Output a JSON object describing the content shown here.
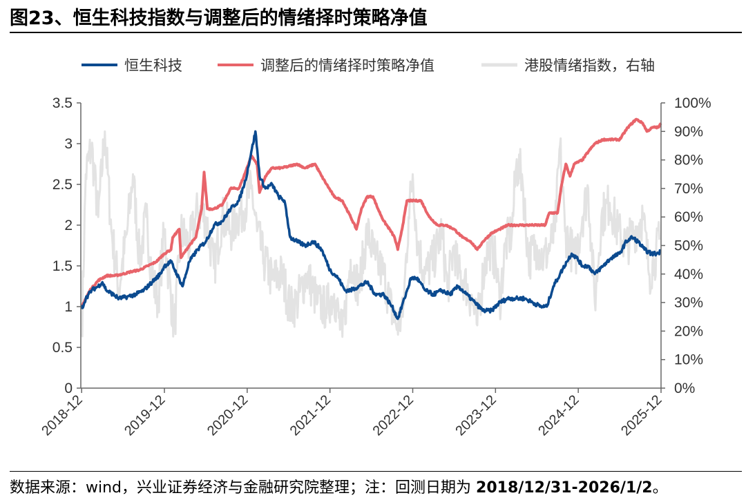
{
  "title": "图23、恒生科技指数与调整后的情绪择时策略净值",
  "source_prefix": "数据来源：wind，兴业证券经济与金融研究院整理；注：回测日期为 ",
  "source_dates": "2018/12/31-2026/1/2",
  "source_suffix": "。",
  "colors": {
    "hstech": "#0b4a8f",
    "strategy": "#e8646a",
    "sentiment": "#e3e3e3",
    "axis": "#666666"
  },
  "chart_data": {
    "type": "line",
    "legend": [
      "恒生科技",
      "调整后的情绪择时策略净值",
      "港股情绪指数，右轴"
    ],
    "legend_position": "top",
    "x_range": [
      2018.99,
      2026.0
    ],
    "x_ticks": [
      2019.0,
      2020.0,
      2021.0,
      2022.0,
      2023.0,
      2024.0,
      2025.0,
      2026.0
    ],
    "x_tick_labels": [
      "2018-12",
      "2019-12",
      "2020-12",
      "2021-12",
      "2022-12",
      "2023-12",
      "2024-12",
      "2025-12"
    ],
    "y_left": {
      "range": [
        0,
        3.5
      ],
      "ticks": [
        0,
        0.5,
        1,
        1.5,
        2,
        2.5,
        3,
        3.5
      ],
      "tick_labels": [
        "0",
        "0.5",
        "1",
        "1.5",
        "2",
        "2.5",
        "3",
        "3.5"
      ]
    },
    "y_right": {
      "range": [
        0,
        1
      ],
      "ticks": [
        0,
        0.1,
        0.2,
        0.3,
        0.4,
        0.5,
        0.6,
        0.7,
        0.8,
        0.9,
        1.0
      ],
      "tick_labels": [
        "0%",
        "10%",
        "20%",
        "30%",
        "40%",
        "50%",
        "60%",
        "70%",
        "80%",
        "90%",
        "100%"
      ]
    },
    "series": [
      {
        "name": "港股情绪指数，右轴",
        "axis": "right",
        "noise": 0.08,
        "points": [
          [
            2019.0,
            0.18
          ],
          [
            2019.05,
            0.75
          ],
          [
            2019.12,
            0.85
          ],
          [
            2019.2,
            0.6
          ],
          [
            2019.28,
            0.9
          ],
          [
            2019.36,
            0.55
          ],
          [
            2019.45,
            0.35
          ],
          [
            2019.55,
            0.55
          ],
          [
            2019.62,
            0.75
          ],
          [
            2019.7,
            0.45
          ],
          [
            2019.78,
            0.6
          ],
          [
            2019.85,
            0.4
          ],
          [
            2019.92,
            0.3
          ],
          [
            2020.0,
            0.55
          ],
          [
            2020.05,
            0.4
          ],
          [
            2020.12,
            0.2
          ],
          [
            2020.2,
            0.55
          ],
          [
            2020.3,
            0.5
          ],
          [
            2020.4,
            0.62
          ],
          [
            2020.5,
            0.6
          ],
          [
            2020.6,
            0.42
          ],
          [
            2020.7,
            0.6
          ],
          [
            2020.8,
            0.55
          ],
          [
            2020.88,
            0.6
          ],
          [
            2020.95,
            0.62
          ],
          [
            2021.05,
            0.7
          ],
          [
            2021.12,
            0.55
          ],
          [
            2021.2,
            0.45
          ],
          [
            2021.3,
            0.38
          ],
          [
            2021.42,
            0.4
          ],
          [
            2021.52,
            0.28
          ],
          [
            2021.6,
            0.3
          ],
          [
            2021.72,
            0.4
          ],
          [
            2021.85,
            0.3
          ],
          [
            2021.95,
            0.28
          ],
          [
            2022.05,
            0.33
          ],
          [
            2022.15,
            0.18
          ],
          [
            2022.25,
            0.45
          ],
          [
            2022.35,
            0.35
          ],
          [
            2022.45,
            0.55
          ],
          [
            2022.55,
            0.45
          ],
          [
            2022.65,
            0.4
          ],
          [
            2022.72,
            0.3
          ],
          [
            2022.8,
            0.22
          ],
          [
            2022.88,
            0.25
          ],
          [
            2022.95,
            0.6
          ],
          [
            2023.0,
            0.75
          ],
          [
            2023.06,
            0.5
          ],
          [
            2023.15,
            0.4
          ],
          [
            2023.25,
            0.45
          ],
          [
            2023.35,
            0.55
          ],
          [
            2023.42,
            0.35
          ],
          [
            2023.5,
            0.5
          ],
          [
            2023.55,
            0.4
          ],
          [
            2023.62,
            0.38
          ],
          [
            2023.72,
            0.3
          ],
          [
            2023.78,
            0.22
          ],
          [
            2023.85,
            0.4
          ],
          [
            2023.92,
            0.5
          ],
          [
            2024.0,
            0.45
          ],
          [
            2024.05,
            0.3
          ],
          [
            2024.12,
            0.5
          ],
          [
            2024.2,
            0.55
          ],
          [
            2024.25,
            0.78
          ],
          [
            2024.32,
            0.75
          ],
          [
            2024.4,
            0.45
          ],
          [
            2024.5,
            0.5
          ],
          [
            2024.58,
            0.45
          ],
          [
            2024.66,
            0.5
          ],
          [
            2024.72,
            0.55
          ],
          [
            2024.78,
            0.85
          ],
          [
            2024.84,
            0.55
          ],
          [
            2024.9,
            0.5
          ],
          [
            2024.96,
            0.45
          ],
          [
            2025.05,
            0.6
          ],
          [
            2025.12,
            0.7
          ],
          [
            2025.2,
            0.3
          ],
          [
            2025.28,
            0.6
          ],
          [
            2025.38,
            0.65
          ],
          [
            2025.48,
            0.55
          ],
          [
            2025.58,
            0.5
          ],
          [
            2025.68,
            0.55
          ],
          [
            2025.78,
            0.6
          ],
          [
            2025.86,
            0.4
          ],
          [
            2025.92,
            0.45
          ],
          [
            2025.98,
            0.52
          ]
        ]
      },
      {
        "name": "调整后的情绪择时策略净值",
        "axis": "left",
        "noise": 0.01,
        "points": [
          [
            2019.0,
            1.0
          ],
          [
            2019.1,
            1.2
          ],
          [
            2019.2,
            1.32
          ],
          [
            2019.3,
            1.38
          ],
          [
            2019.4,
            1.38
          ],
          [
            2019.5,
            1.4
          ],
          [
            2019.6,
            1.43
          ],
          [
            2019.7,
            1.45
          ],
          [
            2019.8,
            1.5
          ],
          [
            2019.9,
            1.55
          ],
          [
            2020.0,
            1.65
          ],
          [
            2020.08,
            1.7
          ],
          [
            2020.1,
            1.85
          ],
          [
            2020.18,
            1.95
          ],
          [
            2020.2,
            1.6
          ],
          [
            2020.3,
            1.75
          ],
          [
            2020.38,
            1.85
          ],
          [
            2020.45,
            2.2
          ],
          [
            2020.48,
            2.65
          ],
          [
            2020.52,
            2.2
          ],
          [
            2020.6,
            2.2
          ],
          [
            2020.7,
            2.25
          ],
          [
            2020.8,
            2.45
          ],
          [
            2020.9,
            2.45
          ],
          [
            2020.96,
            2.6
          ],
          [
            2021.05,
            2.85
          ],
          [
            2021.12,
            2.75
          ],
          [
            2021.15,
            2.4
          ],
          [
            2021.22,
            2.6
          ],
          [
            2021.3,
            2.7
          ],
          [
            2021.4,
            2.7
          ],
          [
            2021.5,
            2.72
          ],
          [
            2021.6,
            2.75
          ],
          [
            2021.7,
            2.7
          ],
          [
            2021.82,
            2.75
          ],
          [
            2021.9,
            2.6
          ],
          [
            2021.96,
            2.5
          ],
          [
            2022.05,
            2.35
          ],
          [
            2022.15,
            2.3
          ],
          [
            2022.25,
            2.1
          ],
          [
            2022.32,
            1.95
          ],
          [
            2022.38,
            2.2
          ],
          [
            2022.45,
            2.35
          ],
          [
            2022.52,
            2.35
          ],
          [
            2022.58,
            2.2
          ],
          [
            2022.65,
            2.05
          ],
          [
            2022.72,
            1.95
          ],
          [
            2022.78,
            1.85
          ],
          [
            2022.82,
            1.7
          ],
          [
            2022.88,
            2.0
          ],
          [
            2022.93,
            2.3
          ],
          [
            2023.0,
            2.3
          ],
          [
            2023.1,
            2.3
          ],
          [
            2023.2,
            2.1
          ],
          [
            2023.3,
            2.0
          ],
          [
            2023.4,
            2.0
          ],
          [
            2023.5,
            1.95
          ],
          [
            2023.6,
            1.85
          ],
          [
            2023.7,
            1.8
          ],
          [
            2023.78,
            1.7
          ],
          [
            2023.85,
            1.8
          ],
          [
            2023.95,
            1.9
          ],
          [
            2024.05,
            1.95
          ],
          [
            2024.15,
            2.0
          ],
          [
            2024.25,
            2.0
          ],
          [
            2024.35,
            2.0
          ],
          [
            2024.45,
            2.0
          ],
          [
            2024.55,
            2.0
          ],
          [
            2024.6,
            2.0
          ],
          [
            2024.65,
            2.15
          ],
          [
            2024.75,
            2.15
          ],
          [
            2024.8,
            2.5
          ],
          [
            2024.85,
            2.75
          ],
          [
            2024.9,
            2.6
          ],
          [
            2024.95,
            2.75
          ],
          [
            2025.05,
            2.8
          ],
          [
            2025.12,
            2.9
          ],
          [
            2025.2,
            3.0
          ],
          [
            2025.3,
            3.05
          ],
          [
            2025.4,
            3.05
          ],
          [
            2025.5,
            3.05
          ],
          [
            2025.6,
            3.2
          ],
          [
            2025.7,
            3.3
          ],
          [
            2025.78,
            3.25
          ],
          [
            2025.83,
            3.15
          ],
          [
            2025.9,
            3.2
          ],
          [
            2025.97,
            3.2
          ],
          [
            2026.0,
            3.25
          ]
        ]
      },
      {
        "name": "恒生科技",
        "axis": "left",
        "noise": 0.025,
        "points": [
          [
            2019.0,
            0.97
          ],
          [
            2019.05,
            1.1
          ],
          [
            2019.12,
            1.2
          ],
          [
            2019.2,
            1.25
          ],
          [
            2019.25,
            1.3
          ],
          [
            2019.3,
            1.2
          ],
          [
            2019.38,
            1.15
          ],
          [
            2019.45,
            1.1
          ],
          [
            2019.55,
            1.12
          ],
          [
            2019.65,
            1.15
          ],
          [
            2019.75,
            1.2
          ],
          [
            2019.85,
            1.3
          ],
          [
            2019.95,
            1.4
          ],
          [
            2020.0,
            1.5
          ],
          [
            2020.08,
            1.55
          ],
          [
            2020.15,
            1.4
          ],
          [
            2020.22,
            1.25
          ],
          [
            2020.3,
            1.55
          ],
          [
            2020.4,
            1.7
          ],
          [
            2020.5,
            1.8
          ],
          [
            2020.6,
            2.0
          ],
          [
            2020.7,
            2.05
          ],
          [
            2020.8,
            2.2
          ],
          [
            2020.9,
            2.3
          ],
          [
            2020.98,
            2.55
          ],
          [
            2021.05,
            2.9
          ],
          [
            2021.1,
            3.15
          ],
          [
            2021.15,
            2.6
          ],
          [
            2021.22,
            2.45
          ],
          [
            2021.3,
            2.5
          ],
          [
            2021.38,
            2.35
          ],
          [
            2021.45,
            2.3
          ],
          [
            2021.52,
            1.85
          ],
          [
            2021.6,
            1.8
          ],
          [
            2021.7,
            1.75
          ],
          [
            2021.8,
            1.8
          ],
          [
            2021.9,
            1.7
          ],
          [
            2022.0,
            1.45
          ],
          [
            2022.1,
            1.35
          ],
          [
            2022.18,
            1.2
          ],
          [
            2022.25,
            1.2
          ],
          [
            2022.35,
            1.25
          ],
          [
            2022.45,
            1.3
          ],
          [
            2022.55,
            1.15
          ],
          [
            2022.65,
            1.15
          ],
          [
            2022.75,
            1.0
          ],
          [
            2022.82,
            0.85
          ],
          [
            2022.9,
            1.1
          ],
          [
            2022.98,
            1.35
          ],
          [
            2023.05,
            1.35
          ],
          [
            2023.15,
            1.2
          ],
          [
            2023.25,
            1.15
          ],
          [
            2023.35,
            1.2
          ],
          [
            2023.45,
            1.15
          ],
          [
            2023.55,
            1.25
          ],
          [
            2023.65,
            1.15
          ],
          [
            2023.75,
            1.05
          ],
          [
            2023.85,
            0.95
          ],
          [
            2023.95,
            0.95
          ],
          [
            2024.05,
            1.05
          ],
          [
            2024.15,
            1.1
          ],
          [
            2024.25,
            1.1
          ],
          [
            2024.35,
            1.1
          ],
          [
            2024.45,
            1.05
          ],
          [
            2024.55,
            1.0
          ],
          [
            2024.62,
            1.0
          ],
          [
            2024.7,
            1.25
          ],
          [
            2024.78,
            1.4
          ],
          [
            2024.86,
            1.55
          ],
          [
            2024.92,
            1.65
          ],
          [
            2024.98,
            1.6
          ],
          [
            2025.05,
            1.5
          ],
          [
            2025.12,
            1.5
          ],
          [
            2025.2,
            1.4
          ],
          [
            2025.3,
            1.5
          ],
          [
            2025.4,
            1.6
          ],
          [
            2025.5,
            1.65
          ],
          [
            2025.58,
            1.8
          ],
          [
            2025.65,
            1.85
          ],
          [
            2025.72,
            1.8
          ],
          [
            2025.8,
            1.7
          ],
          [
            2025.88,
            1.65
          ],
          [
            2025.95,
            1.65
          ],
          [
            2026.0,
            1.68
          ]
        ]
      }
    ]
  }
}
